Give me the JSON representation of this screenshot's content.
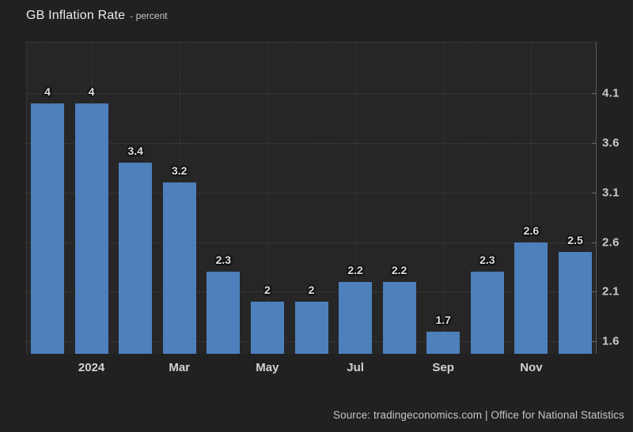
{
  "header": {
    "title": "GB Inflation Rate",
    "subtitle": "- percent"
  },
  "footer": {
    "source": "Source: tradingeconomics.com | Office for National Statistics"
  },
  "colors": {
    "background": "#212121",
    "plot_background": "#262627",
    "bar": "#4d80bc",
    "grid": "#454545",
    "axis_line": "#5a5a5a",
    "text": "#c9c9c9",
    "value_label": "#e0e0e0"
  },
  "chart_data": {
    "type": "bar",
    "title": "GB Inflation Rate",
    "subtitle": "percent",
    "values": [
      4,
      4,
      3.4,
      3.2,
      2.3,
      2,
      2,
      2.2,
      2.2,
      1.7,
      2.3,
      2.6,
      2.5
    ],
    "bar_labels": [
      "4",
      "4",
      "3.4",
      "3.2",
      "2.3",
      "2",
      "2",
      "2.2",
      "2.2",
      "1.7",
      "2.3",
      "2.6",
      "2.5"
    ],
    "x_ticks": [
      {
        "label": "2024",
        "bar_index": 1
      },
      {
        "label": "Mar",
        "bar_index": 3
      },
      {
        "label": "May",
        "bar_index": 5
      },
      {
        "label": "Jul",
        "bar_index": 7
      },
      {
        "label": "Sep",
        "bar_index": 9
      },
      {
        "label": "Nov",
        "bar_index": 11
      }
    ],
    "y_ticks": [
      4.1,
      3.6,
      3.1,
      2.6,
      2.1,
      1.6
    ],
    "y_tick_labels": [
      "4.1",
      "3.6",
      "3.1",
      "2.6",
      "2.1",
      "1.6"
    ],
    "y_axis_side": "right",
    "ylim": [
      1.473,
      4.61
    ],
    "grid": "dotted",
    "legend": "none"
  }
}
